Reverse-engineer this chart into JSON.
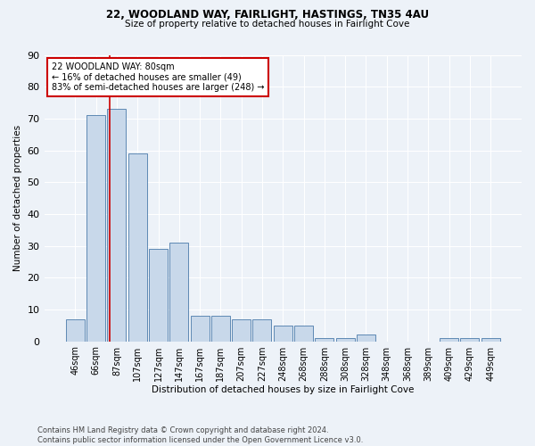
{
  "title1": "22, WOODLAND WAY, FAIRLIGHT, HASTINGS, TN35 4AU",
  "title2": "Size of property relative to detached houses in Fairlight Cove",
  "xlabel": "Distribution of detached houses by size in Fairlight Cove",
  "ylabel": "Number of detached properties",
  "footnote1": "Contains HM Land Registry data © Crown copyright and database right 2024.",
  "footnote2": "Contains public sector information licensed under the Open Government Licence v3.0.",
  "bar_labels": [
    "46sqm",
    "66sqm",
    "87sqm",
    "107sqm",
    "127sqm",
    "147sqm",
    "167sqm",
    "187sqm",
    "207sqm",
    "227sqm",
    "248sqm",
    "268sqm",
    "288sqm",
    "308sqm",
    "328sqm",
    "348sqm",
    "368sqm",
    "389sqm",
    "409sqm",
    "429sqm",
    "449sqm"
  ],
  "bar_values": [
    7,
    71,
    73,
    59,
    29,
    31,
    8,
    8,
    7,
    7,
    5,
    5,
    1,
    1,
    2,
    0,
    0,
    0,
    1,
    1,
    1
  ],
  "bar_color": "#c8d8ea",
  "bar_edge_color": "#4a7aaa",
  "property_line_label": "22 WOODLAND WAY: 80sqm",
  "annotation_line1": "← 16% of detached houses are smaller (49)",
  "annotation_line2": "83% of semi-detached houses are larger (248) →",
  "annotation_box_color": "#ffffff",
  "annotation_box_edge": "#cc0000",
  "vline_color": "#cc0000",
  "bg_color": "#edf2f8",
  "plot_bg_color": "#edf2f8",
  "ylim": [
    0,
    90
  ],
  "yticks": [
    0,
    10,
    20,
    30,
    40,
    50,
    60,
    70,
    80,
    90
  ]
}
